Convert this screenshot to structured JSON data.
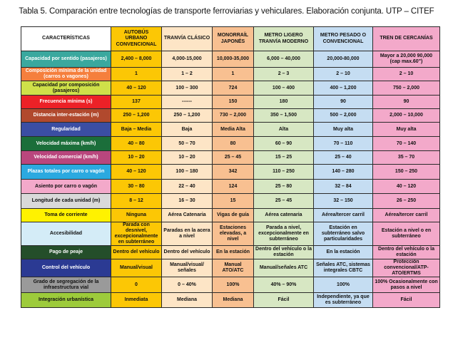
{
  "title": "Tabla 5. Comparación entre tecnologías de transporte ferroviarias y vehiculares. Elaboración conjunta. UTP – CITEF",
  "colors": {
    "autobus": "#fcc705",
    "tranvia": "#fde5c6",
    "monorrail": "#f8c091",
    "metro_ligero": "#d7e7c3",
    "metro_pesado": "#c5ddf2",
    "tren_cercanias": "#f3a9ca"
  },
  "headers": [
    "CARACTERÍSTICAS",
    "AUTOBÚS URBANO CONVENCIONAL",
    "TRANVÍA CLÁSICO",
    "MONORRAÍL JAPONÉS",
    "METRO LIGERO TRANVÍA MODERNO",
    "METRO PESADO O CONVENCIONAL",
    "TREN DE CERCANÍAS"
  ],
  "rows": [
    {
      "label": "Capacidad por sentido (pasajeros)",
      "color": "#3aa89e",
      "light": false,
      "values": [
        "2,400 – 8,000",
        "4,000-15,000",
        "10,000-35,000",
        "6,000 – 40,000",
        "20,000-80,000",
        "Mayor a 20,000 90,000 (cap max.60\")"
      ]
    },
    {
      "label": "Composición mínima de la unidad (carros o vagones)",
      "color": "#f57f3d",
      "light": false,
      "values": [
        "1",
        "1 – 2",
        "1",
        "2 – 3",
        "2 – 10",
        "2 – 10"
      ]
    },
    {
      "label": "Capacidad por composición (pasajeros)",
      "color": "#cfe049",
      "light": true,
      "values": [
        "40 – 120",
        "100 – 300",
        "724",
        "100 – 400",
        "400 – 1,200",
        "750 – 2,000"
      ]
    },
    {
      "label": "Frecuencia mínima (s)",
      "color": "#ec2127",
      "light": false,
      "values": [
        "137",
        "------",
        "150",
        "180",
        "90",
        "90"
      ]
    },
    {
      "label": "Distancia inter-estación (m)",
      "color": "#b1492d",
      "light": false,
      "values": [
        "250 – 1,200",
        "250 – 1,200",
        "730 – 2,000",
        "350 – 1,500",
        "500 – 2,000",
        "2,000 – 10,000"
      ]
    },
    {
      "label": "Regularidad",
      "color": "#3b4ea3",
      "light": false,
      "values": [
        "Baja – Media",
        "Baja",
        "Media Alta",
        "Alta",
        "Muy alta",
        "Muy alta"
      ]
    },
    {
      "label": "Velocidad máxima (km/h)",
      "color": "#1b6e3a",
      "light": false,
      "values": [
        "40 – 80",
        "50 – 70",
        "80",
        "60 – 90",
        "70 – 110",
        "70 – 140"
      ]
    },
    {
      "label": "Velocidad comercial (km/h)",
      "color": "#b9467d",
      "light": false,
      "values": [
        "10 – 20",
        "10 – 20",
        "25 – 45",
        "15 – 25",
        "25 – 40",
        "35 – 70"
      ]
    },
    {
      "label": "Plazas totales por carro o vagón",
      "color": "#2ba9e0",
      "light": false,
      "values": [
        "40 – 120",
        "100 – 180",
        "342",
        "110 – 250",
        "140 – 280",
        "150 – 250"
      ]
    },
    {
      "label": "Asiento por carro o vagón",
      "color": "#f3a9ca",
      "light": true,
      "values": [
        "30 – 80",
        "22 – 40",
        "124",
        "25 – 80",
        "32 – 84",
        "40 – 120"
      ]
    },
    {
      "label": "Longitud de cada unidad (m)",
      "color": "#d9d9d9",
      "light": true,
      "values": [
        "8 – 12",
        "16 – 30",
        "15",
        "25 – 45",
        "32 – 150",
        "26 – 250"
      ]
    },
    {
      "label": "Toma de corriente",
      "color": "#fff200",
      "light": true,
      "values": [
        "Ninguna",
        "Aérea Catenaria",
        "Vigas de guía",
        "Aérea catenaria",
        "Aérea/tercer carril",
        "Aérea/tercer carril"
      ]
    },
    {
      "label": "Accesibilidad",
      "color": "#d4ecf7",
      "light": true,
      "values": [
        "Parada con desnivel, excepcionalmente en subterráneo",
        "Paradas en la acera a nivel",
        "Estaciones elevadas, a nivel",
        "Parada a nivel, excepcionalmente en subterráneo",
        "Estación en subterráneo salvo particularidades",
        "Estación a nivel o en subterráneo"
      ]
    },
    {
      "label": "Pago de peaje",
      "color": "#244e2a",
      "light": false,
      "values": [
        "Dentro del vehículo",
        "Dentro del vehículo",
        "En la estación",
        "Dentro del vehículo o la estación",
        "En la estación",
        "Dentro del vehículo o la estación"
      ]
    },
    {
      "label": "Control del vehículo",
      "color": "#2b3a93",
      "light": false,
      "values": [
        "Manual/visual",
        "Manual/visual/ señales",
        "Manual ATO/ATC",
        "Manual/señales ATC",
        "Señales ATC, sistemas integrales CBTC",
        "Protección convencional/ATP-ATO/ERTMS"
      ]
    },
    {
      "label": "Grado de segregación de la infraestructura vial",
      "color": "#9a9a9a",
      "light": true,
      "values": [
        "0",
        "0 – 40%",
        "100%",
        "40% – 90%",
        "100%",
        "100% Ocasionalmente con pasos a nivel"
      ]
    },
    {
      "label": "Integración urbanística",
      "color": "#9dcb3b",
      "light": true,
      "values": [
        "Inmediata",
        "Mediana",
        "Mediana",
        "Fácil",
        "Independiente, ya que es subterráneo",
        "Fácil"
      ]
    }
  ]
}
